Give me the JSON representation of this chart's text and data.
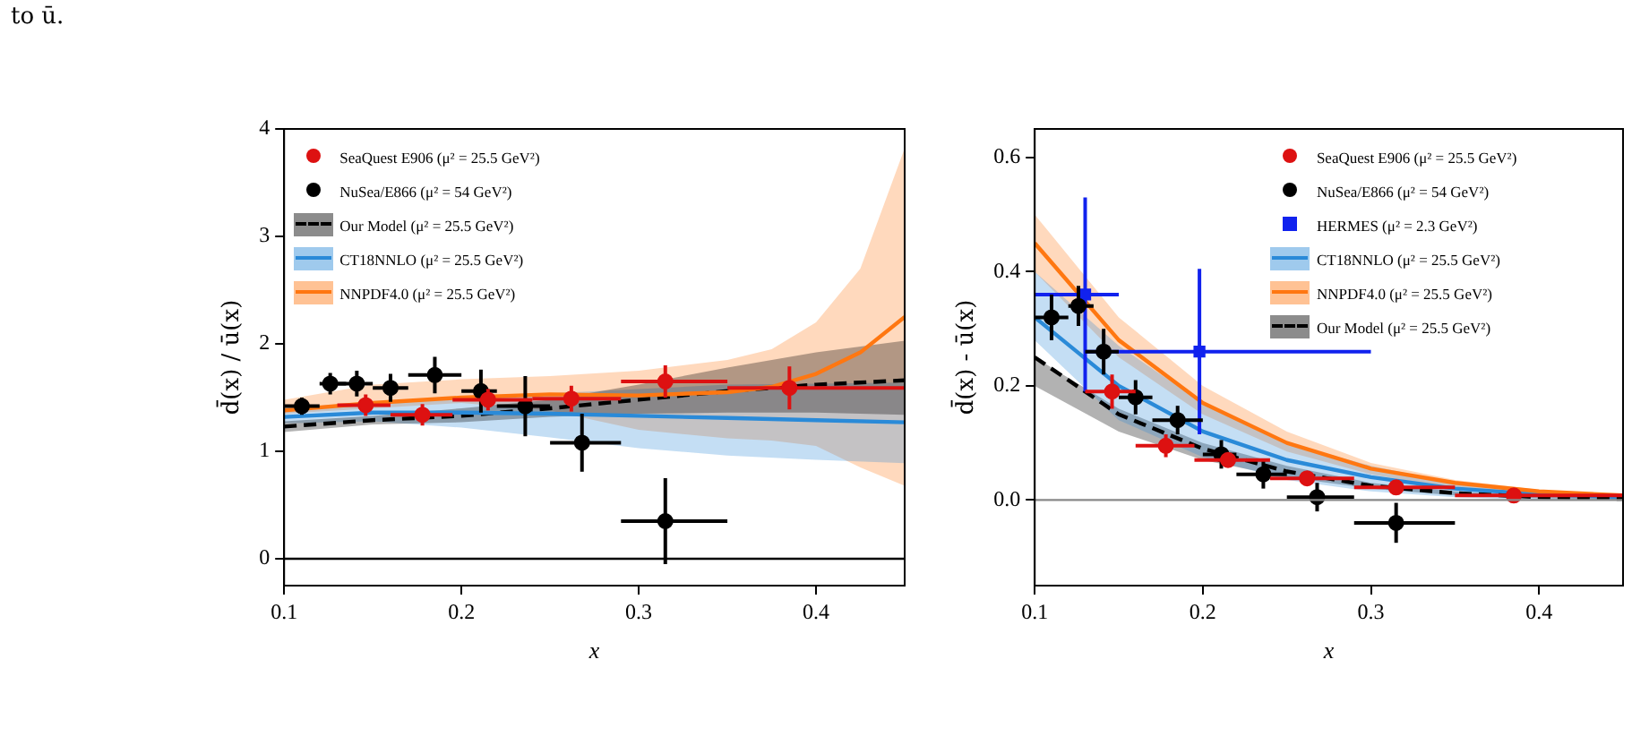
{
  "chart_data": [
    {
      "type": "scatter",
      "ylabel": "d̄(x) / ū(x)",
      "xlabel": "x",
      "xlim": [
        0.1,
        0.45
      ],
      "xticks": [
        0.1,
        0.2,
        0.3,
        0.4
      ],
      "ylim": [
        -0.25,
        4
      ],
      "yticks": [
        0,
        1,
        2,
        3,
        4
      ],
      "grid": false,
      "legend": "top left",
      "annotations": [
        "to ū."
      ],
      "ref_lines": [
        {
          "axis": "y",
          "value": 0,
          "color": "#000000"
        }
      ],
      "series": [
        {
          "name": "SeaQuest E906 (μ² = 25.5 GeV²)",
          "marker": "circle",
          "color": "#dd1111",
          "x": [
            0.146,
            0.178,
            0.215,
            0.262,
            0.315,
            0.385
          ],
          "values": [
            1.43,
            1.34,
            1.48,
            1.49,
            1.65,
            1.59
          ],
          "errors": [
            0.1,
            0.1,
            0.1,
            0.12,
            0.15,
            0.2
          ],
          "xerrors": [
            [
              0.13,
              0.16
            ],
            [
              0.16,
              0.195
            ],
            [
              0.195,
              0.24
            ],
            [
              0.24,
              0.29
            ],
            [
              0.29,
              0.35
            ],
            [
              0.35,
              0.45
            ]
          ]
        },
        {
          "name": "NuSea/E866 (μ² = 54 GeV²)",
          "marker": "circle",
          "color": "#000000",
          "x": [
            0.11,
            0.126,
            0.141,
            0.16,
            0.185,
            0.211,
            0.236,
            0.268,
            0.315
          ],
          "values": [
            1.42,
            1.63,
            1.63,
            1.59,
            1.71,
            1.56,
            1.42,
            1.08,
            0.35
          ],
          "errors": [
            0.08,
            0.1,
            0.12,
            0.13,
            0.17,
            0.2,
            0.28,
            0.27,
            0.4
          ],
          "xerrors": [
            [
              0.1,
              0.12
            ],
            [
              0.12,
              0.135
            ],
            [
              0.13,
              0.15
            ],
            [
              0.15,
              0.17
            ],
            [
              0.17,
              0.2
            ],
            [
              0.2,
              0.22
            ],
            [
              0.22,
              0.25
            ],
            [
              0.25,
              0.29
            ],
            [
              0.29,
              0.35
            ]
          ]
        },
        {
          "name": "Our Model (μ² = 25.5 GeV²)",
          "type": "line",
          "line_style": "dashed",
          "color": "#000000",
          "x": [
            0.1,
            0.15,
            0.2,
            0.25,
            0.3,
            0.35,
            0.4,
            0.45
          ],
          "values": [
            1.23,
            1.29,
            1.33,
            1.4,
            1.48,
            1.56,
            1.62,
            1.66
          ],
          "lower": [
            1.18,
            1.25,
            1.27,
            1.32,
            1.35,
            1.36,
            1.36,
            1.34
          ],
          "upper": [
            1.28,
            1.33,
            1.4,
            1.48,
            1.62,
            1.78,
            1.92,
            2.03
          ]
        },
        {
          "name": "CT18NNLO (μ² = 25.5 GeV²)",
          "type": "line",
          "line_style": "solid",
          "color": "#2a8ad8",
          "x": [
            0.1,
            0.15,
            0.2,
            0.25,
            0.3,
            0.35,
            0.4,
            0.45
          ],
          "values": [
            1.32,
            1.36,
            1.36,
            1.35,
            1.33,
            1.31,
            1.29,
            1.27
          ],
          "lower": [
            1.26,
            1.28,
            1.22,
            1.13,
            1.03,
            0.96,
            0.92,
            0.89
          ],
          "upper": [
            1.4,
            1.46,
            1.5,
            1.54,
            1.58,
            1.62,
            1.63,
            1.64
          ]
        },
        {
          "name": "NNPDF4.0 (μ² = 25.5 GeV²)",
          "type": "line",
          "line_style": "solid",
          "color": "#ff7711",
          "x": [
            0.1,
            0.15,
            0.2,
            0.25,
            0.3,
            0.35,
            0.375,
            0.4,
            0.425,
            0.45
          ],
          "values": [
            1.38,
            1.45,
            1.5,
            1.53,
            1.52,
            1.55,
            1.6,
            1.72,
            1.92,
            2.25
          ],
          "lower": [
            1.35,
            1.4,
            1.45,
            1.38,
            1.2,
            1.12,
            1.1,
            1.05,
            0.85,
            0.68
          ],
          "upper": [
            1.48,
            1.62,
            1.67,
            1.7,
            1.75,
            1.85,
            1.95,
            2.2,
            2.7,
            3.82
          ]
        }
      ]
    },
    {
      "type": "scatter",
      "ylabel": "d̄(x) - ū(x)",
      "xlabel": "x",
      "xlim": [
        0.1,
        0.45
      ],
      "xticks": [
        0.1,
        0.2,
        0.3,
        0.4
      ],
      "ylim": [
        -0.15,
        0.65
      ],
      "yticks": [
        {
          "value": 0,
          "label": "0.0"
        },
        {
          "value": 0.2,
          "label": "0.2"
        },
        {
          "value": 0.4,
          "label": "0.4"
        },
        {
          "value": 0.6,
          "label": "0.6"
        }
      ],
      "grid": false,
      "legend": "top right",
      "ref_lines": [
        {
          "axis": "y",
          "value": 0,
          "color": "#888888"
        }
      ],
      "series": [
        {
          "name": "SeaQuest E906 (μ² = 25.5 GeV²)",
          "marker": "circle",
          "color": "#dd1111",
          "x": [
            0.146,
            0.178,
            0.215,
            0.262,
            0.315,
            0.385
          ],
          "values": [
            0.19,
            0.095,
            0.07,
            0.038,
            0.022,
            0.008
          ],
          "errors": [
            0.03,
            0.02,
            0.01,
            0.008,
            0.005,
            0.003
          ],
          "xerrors": [
            [
              0.13,
              0.16
            ],
            [
              0.16,
              0.195
            ],
            [
              0.195,
              0.24
            ],
            [
              0.24,
              0.29
            ],
            [
              0.29,
              0.35
            ],
            [
              0.35,
              0.45
            ]
          ]
        },
        {
          "name": "NuSea/E866 (μ² = 54 GeV²)",
          "marker": "circle",
          "color": "#000000",
          "x": [
            0.11,
            0.126,
            0.141,
            0.16,
            0.185,
            0.211,
            0.236,
            0.268,
            0.315
          ],
          "values": [
            0.32,
            0.34,
            0.26,
            0.18,
            0.14,
            0.08,
            0.045,
            0.005,
            -0.04
          ],
          "errors": [
            0.04,
            0.035,
            0.04,
            0.03,
            0.025,
            0.025,
            0.025,
            0.025,
            0.035
          ],
          "xerrors": [
            [
              0.1,
              0.12
            ],
            [
              0.12,
              0.135
            ],
            [
              0.13,
              0.15
            ],
            [
              0.15,
              0.17
            ],
            [
              0.17,
              0.2
            ],
            [
              0.2,
              0.22
            ],
            [
              0.22,
              0.25
            ],
            [
              0.25,
              0.29
            ],
            [
              0.29,
              0.35
            ]
          ]
        },
        {
          "name": "HERMES (μ² = 2.3 GeV²)",
          "marker": "square",
          "color": "#1122ee",
          "x": [
            0.13,
            0.198
          ],
          "values": [
            0.36,
            0.26
          ],
          "errors": [
            0.17,
            0.145
          ],
          "xerrors": [
            [
              0.1,
              0.15
            ],
            [
              0.13,
              0.3
            ]
          ]
        },
        {
          "name": "CT18NNLO (μ² = 25.5 GeV²)",
          "type": "line",
          "line_style": "solid",
          "color": "#2a8ad8",
          "x": [
            0.1,
            0.15,
            0.2,
            0.25,
            0.3,
            0.35,
            0.4,
            0.45
          ],
          "values": [
            0.32,
            0.2,
            0.12,
            0.07,
            0.04,
            0.02,
            0.01,
            0.005
          ],
          "lower": [
            0.28,
            0.14,
            0.075,
            0.035,
            0.015,
            0.005,
            0,
            0
          ],
          "upper": [
            0.4,
            0.27,
            0.17,
            0.1,
            0.06,
            0.03,
            0.015,
            0.01
          ]
        },
        {
          "name": "NNPDF4.0 (μ² = 25.5 GeV²)",
          "type": "line",
          "line_style": "solid",
          "color": "#ff7711",
          "x": [
            0.1,
            0.15,
            0.2,
            0.25,
            0.3,
            0.35,
            0.4,
            0.45
          ],
          "values": [
            0.45,
            0.28,
            0.17,
            0.1,
            0.055,
            0.03,
            0.015,
            0.008
          ],
          "lower": [
            0.4,
            0.25,
            0.15,
            0.085,
            0.045,
            0.02,
            0.008,
            0.003
          ],
          "upper": [
            0.5,
            0.32,
            0.2,
            0.12,
            0.065,
            0.035,
            0.018,
            0.01
          ]
        },
        {
          "name": "Our Model (μ² = 25.5 GeV²)",
          "type": "line",
          "line_style": "dashed",
          "color": "#000000",
          "x": [
            0.1,
            0.15,
            0.2,
            0.25,
            0.3,
            0.35,
            0.4,
            0.45
          ],
          "values": [
            0.25,
            0.15,
            0.09,
            0.05,
            0.025,
            0.012,
            0.005,
            0.002
          ],
          "lower": [
            0.2,
            0.12,
            0.07,
            0.04,
            0.02,
            0.008,
            0.003,
            0.001
          ],
          "upper": [
            0.25,
            0.16,
            0.1,
            0.06,
            0.03,
            0.015,
            0.007,
            0.003
          ]
        }
      ]
    }
  ]
}
